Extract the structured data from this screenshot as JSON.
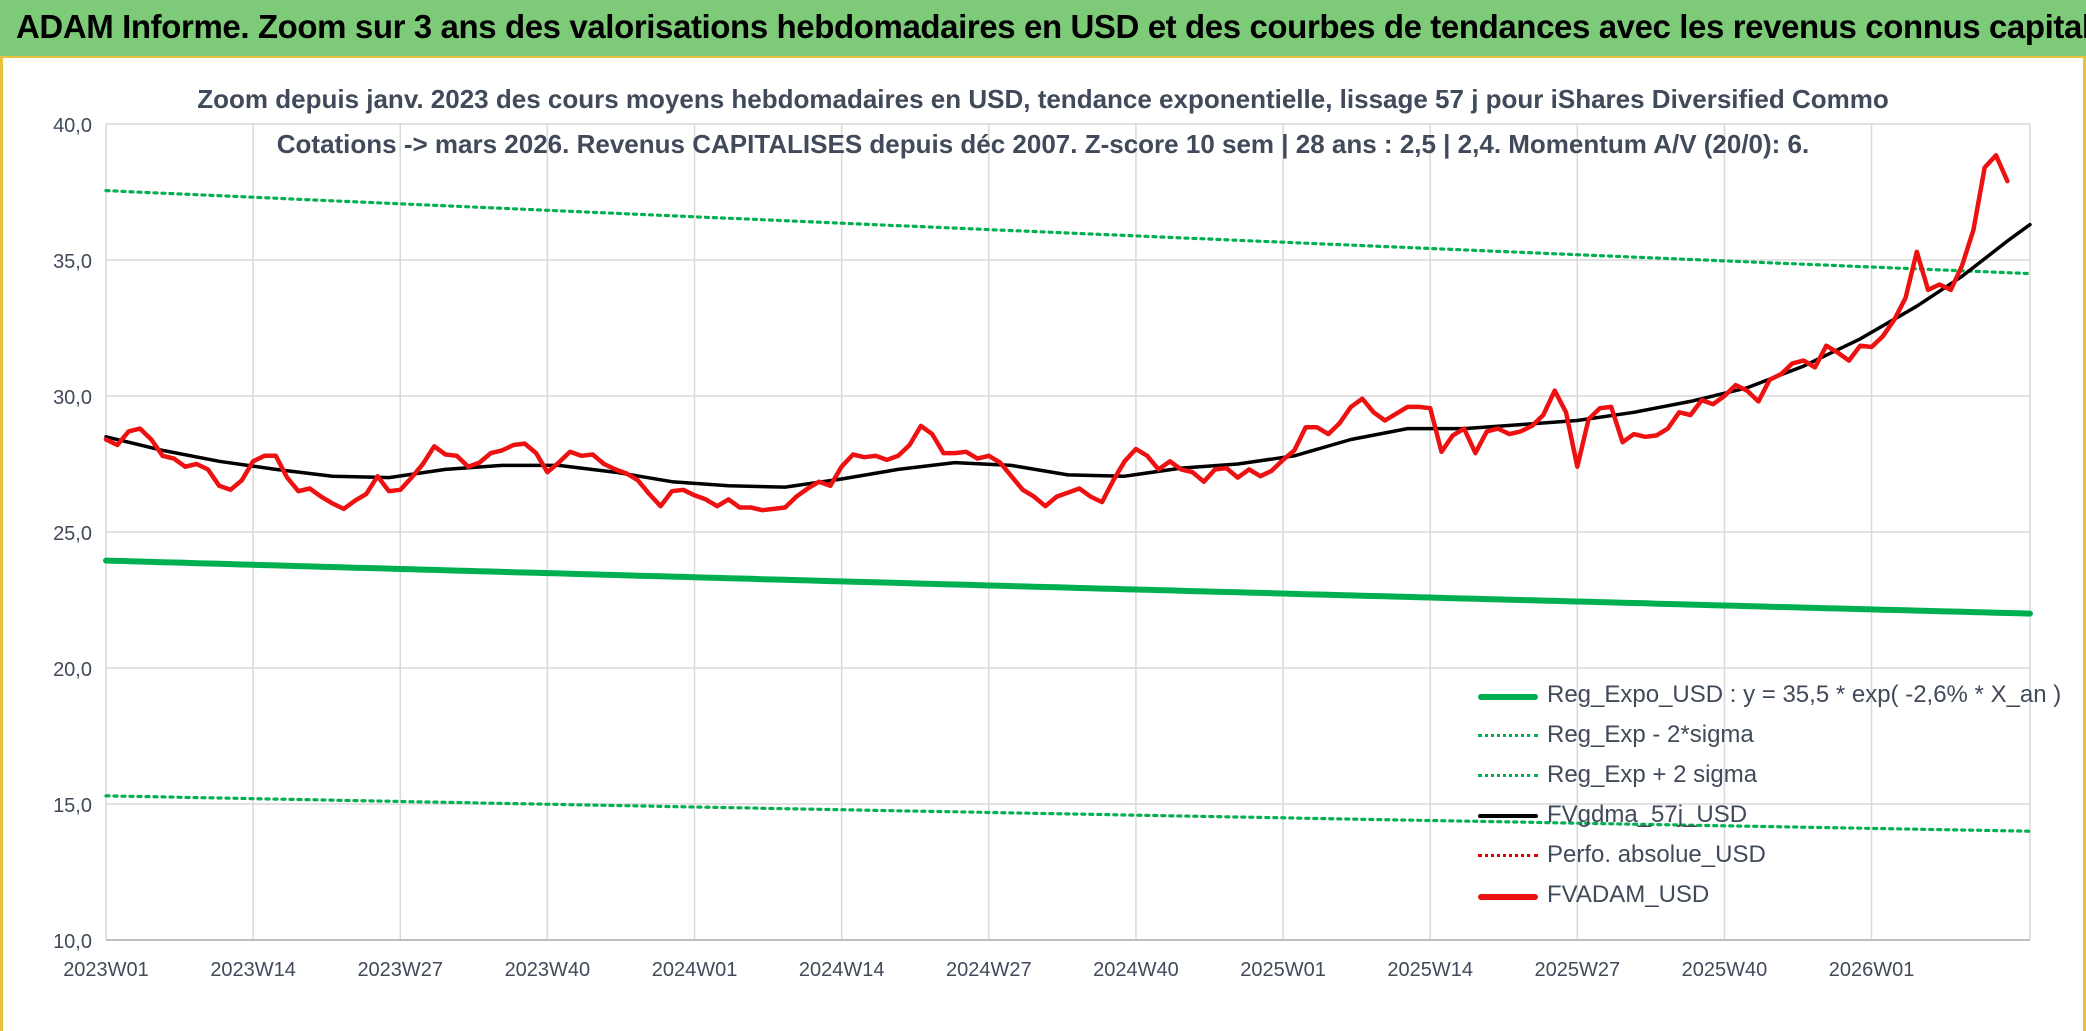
{
  "header": {
    "title": "ADAM Informe. Zoom sur 3 ans des valorisations hebdomadaires en USD et des courbes de tendances avec les revenus connus capitalisés"
  },
  "chart_data": {
    "type": "line",
    "title_line_1": "Zoom depuis janv. 2023 des cours moyens hebdomadaires en USD, tendance exponentielle, lissage 57 j pour iShares Diversified Commo",
    "title_line_2": "Cotations -> mars 2026. Revenus CAPITALISES depuis déc 2007. Z-score 10 sem | 28 ans : 2,5 | 2,4. Momentum A/V (20/0): 6.",
    "ylim": [
      10,
      40
    ],
    "yticks": [
      "10,0",
      "15,0",
      "20,0",
      "25,0",
      "30,0",
      "35,0",
      "40,0"
    ],
    "x_tick_labels": [
      "2023W01",
      "2023W14",
      "2023W27",
      "2023W40",
      "2024W01",
      "2024W14",
      "2024W27",
      "2024W40",
      "2025W01",
      "2025W14",
      "2025W27",
      "2025W40",
      "2026W01"
    ],
    "x_tick_week_index": [
      0,
      13,
      26,
      39,
      52,
      65,
      78,
      91,
      104,
      117,
      130,
      143,
      156
    ],
    "num_weeks": 171,
    "grid": true,
    "legend_position": "bottom-right",
    "colors": {
      "trend": "#00b050",
      "band": "#00b050",
      "smooth": "#000000",
      "perf": "#e00000",
      "price": "#ee1111",
      "grid": "#d9d9d9",
      "axis_text": "#404a5a"
    },
    "series": [
      {
        "name": "Reg_Expo_USD : y = 35,5 * exp( -2,6% *  X_an )",
        "style": "solid-thick",
        "color": "#00b050",
        "start": 23.95,
        "end": 22.0
      },
      {
        "name": "Reg_Exp - 2*sigma",
        "style": "dotted",
        "color": "#00b050",
        "start": 15.3,
        "end": 14.0
      },
      {
        "name": "Reg_Exp + 2 sigma",
        "style": "dotted",
        "color": "#00b050",
        "start": 37.55,
        "end": 34.5
      },
      {
        "name": "FVgdma_57j_USD",
        "style": "solid",
        "color": "#000000",
        "points": [
          [
            0,
            28.5
          ],
          [
            5,
            28.0
          ],
          [
            10,
            27.6
          ],
          [
            15,
            27.3
          ],
          [
            20,
            27.05
          ],
          [
            25,
            27.0
          ],
          [
            30,
            27.3
          ],
          [
            35,
            27.45
          ],
          [
            40,
            27.45
          ],
          [
            45,
            27.2
          ],
          [
            50,
            26.85
          ],
          [
            55,
            26.7
          ],
          [
            60,
            26.65
          ],
          [
            65,
            26.95
          ],
          [
            70,
            27.3
          ],
          [
            75,
            27.55
          ],
          [
            80,
            27.45
          ],
          [
            85,
            27.1
          ],
          [
            90,
            27.05
          ],
          [
            95,
            27.35
          ],
          [
            100,
            27.5
          ],
          [
            105,
            27.8
          ],
          [
            110,
            28.4
          ],
          [
            115,
            28.8
          ],
          [
            120,
            28.8
          ],
          [
            125,
            28.95
          ],
          [
            130,
            29.1
          ],
          [
            135,
            29.4
          ],
          [
            140,
            29.8
          ],
          [
            145,
            30.3
          ],
          [
            150,
            31.1
          ],
          [
            155,
            32.1
          ],
          [
            160,
            33.3
          ],
          [
            164,
            34.4
          ],
          [
            168,
            35.7
          ],
          [
            170,
            36.3
          ]
        ]
      },
      {
        "name": "Perfo. absolue_USD",
        "style": "dotted",
        "color": "#e00000",
        "points": []
      },
      {
        "name": "FVADAM_USD",
        "style": "solid-thick",
        "color": "#ee1111",
        "points": [
          [
            0,
            28.4
          ],
          [
            1,
            28.2
          ],
          [
            2,
            28.7
          ],
          [
            3,
            28.8
          ],
          [
            4,
            28.4
          ],
          [
            5,
            27.8
          ],
          [
            6,
            27.7
          ],
          [
            7,
            27.4
          ],
          [
            8,
            27.5
          ],
          [
            9,
            27.3
          ],
          [
            10,
            26.7
          ],
          [
            11,
            26.55
          ],
          [
            12,
            26.9
          ],
          [
            13,
            27.6
          ],
          [
            14,
            27.8
          ],
          [
            15,
            27.8
          ],
          [
            16,
            27.0
          ],
          [
            17,
            26.5
          ],
          [
            18,
            26.6
          ],
          [
            19,
            26.3
          ],
          [
            20,
            26.05
          ],
          [
            21,
            25.85
          ],
          [
            22,
            26.15
          ],
          [
            23,
            26.4
          ],
          [
            24,
            27.05
          ],
          [
            25,
            26.5
          ],
          [
            26,
            26.55
          ],
          [
            27,
            27.0
          ],
          [
            28,
            27.5
          ],
          [
            29,
            28.15
          ],
          [
            30,
            27.85
          ],
          [
            31,
            27.8
          ],
          [
            32,
            27.4
          ],
          [
            33,
            27.55
          ],
          [
            34,
            27.9
          ],
          [
            35,
            28.0
          ],
          [
            36,
            28.2
          ],
          [
            37,
            28.25
          ],
          [
            38,
            27.9
          ],
          [
            39,
            27.2
          ],
          [
            40,
            27.55
          ],
          [
            41,
            27.95
          ],
          [
            42,
            27.8
          ],
          [
            43,
            27.85
          ],
          [
            44,
            27.5
          ],
          [
            45,
            27.3
          ],
          [
            46,
            27.15
          ],
          [
            47,
            26.9
          ],
          [
            48,
            26.4
          ],
          [
            49,
            25.95
          ],
          [
            50,
            26.5
          ],
          [
            51,
            26.55
          ],
          [
            52,
            26.35
          ],
          [
            53,
            26.2
          ],
          [
            54,
            25.95
          ],
          [
            55,
            26.2
          ],
          [
            56,
            25.9
          ],
          [
            57,
            25.9
          ],
          [
            58,
            25.8
          ],
          [
            59,
            25.85
          ],
          [
            60,
            25.9
          ],
          [
            61,
            26.3
          ],
          [
            62,
            26.6
          ],
          [
            63,
            26.85
          ],
          [
            64,
            26.7
          ],
          [
            65,
            27.4
          ],
          [
            66,
            27.85
          ],
          [
            67,
            27.75
          ],
          [
            68,
            27.8
          ],
          [
            69,
            27.65
          ],
          [
            70,
            27.8
          ],
          [
            71,
            28.2
          ],
          [
            72,
            28.9
          ],
          [
            73,
            28.6
          ],
          [
            74,
            27.9
          ],
          [
            75,
            27.9
          ],
          [
            76,
            27.95
          ],
          [
            77,
            27.7
          ],
          [
            78,
            27.8
          ],
          [
            79,
            27.55
          ],
          [
            80,
            27.05
          ],
          [
            81,
            26.55
          ],
          [
            82,
            26.3
          ],
          [
            83,
            25.95
          ],
          [
            84,
            26.3
          ],
          [
            85,
            26.45
          ],
          [
            86,
            26.6
          ],
          [
            87,
            26.3
          ],
          [
            88,
            26.1
          ],
          [
            89,
            26.9
          ],
          [
            90,
            27.6
          ],
          [
            91,
            28.05
          ],
          [
            92,
            27.8
          ],
          [
            93,
            27.3
          ],
          [
            94,
            27.6
          ],
          [
            95,
            27.3
          ],
          [
            96,
            27.2
          ],
          [
            97,
            26.85
          ],
          [
            98,
            27.3
          ],
          [
            99,
            27.35
          ],
          [
            100,
            27.0
          ],
          [
            101,
            27.3
          ],
          [
            102,
            27.05
          ],
          [
            103,
            27.25
          ],
          [
            104,
            27.65
          ],
          [
            105,
            28.0
          ],
          [
            106,
            28.85
          ],
          [
            107,
            28.85
          ],
          [
            108,
            28.6
          ],
          [
            109,
            29.0
          ],
          [
            110,
            29.6
          ],
          [
            111,
            29.9
          ],
          [
            112,
            29.4
          ],
          [
            113,
            29.1
          ],
          [
            114,
            29.35
          ],
          [
            115,
            29.6
          ],
          [
            116,
            29.6
          ],
          [
            117,
            29.55
          ],
          [
            118,
            27.95
          ],
          [
            119,
            28.55
          ],
          [
            120,
            28.8
          ],
          [
            121,
            27.9
          ],
          [
            122,
            28.7
          ],
          [
            123,
            28.8
          ],
          [
            124,
            28.6
          ],
          [
            125,
            28.7
          ],
          [
            126,
            28.9
          ],
          [
            127,
            29.3
          ],
          [
            128,
            30.2
          ],
          [
            129,
            29.4
          ],
          [
            130,
            27.4
          ],
          [
            131,
            29.15
          ],
          [
            132,
            29.55
          ],
          [
            133,
            29.6
          ],
          [
            134,
            28.3
          ],
          [
            135,
            28.6
          ],
          [
            136,
            28.5
          ],
          [
            137,
            28.55
          ],
          [
            138,
            28.8
          ],
          [
            139,
            29.4
          ],
          [
            140,
            29.3
          ],
          [
            141,
            29.85
          ],
          [
            142,
            29.7
          ],
          [
            143,
            30.0
          ],
          [
            144,
            30.4
          ],
          [
            145,
            30.2
          ],
          [
            146,
            29.8
          ],
          [
            147,
            30.6
          ],
          [
            148,
            30.8
          ],
          [
            149,
            31.2
          ],
          [
            150,
            31.3
          ],
          [
            151,
            31.05
          ],
          [
            152,
            31.85
          ],
          [
            153,
            31.6
          ],
          [
            154,
            31.3
          ],
          [
            155,
            31.85
          ],
          [
            156,
            31.8
          ],
          [
            157,
            32.2
          ],
          [
            158,
            32.8
          ],
          [
            159,
            33.6
          ],
          [
            160,
            35.3
          ],
          [
            161,
            33.9
          ],
          [
            162,
            34.1
          ],
          [
            163,
            33.9
          ],
          [
            164,
            34.8
          ],
          [
            165,
            36.1
          ],
          [
            166,
            38.4
          ],
          [
            167,
            38.85
          ],
          [
            168,
            37.9
          ]
        ]
      }
    ]
  }
}
